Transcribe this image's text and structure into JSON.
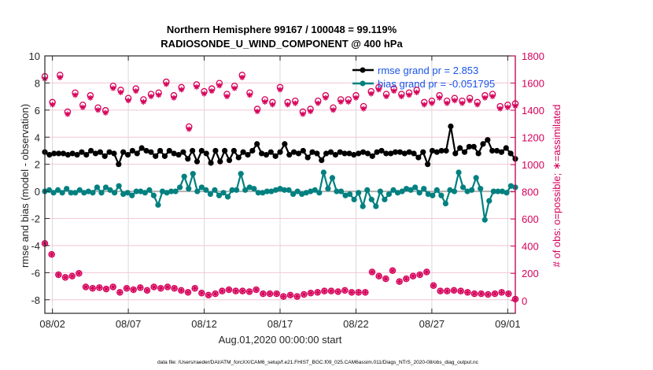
{
  "chart_data": {
    "type": "line",
    "title": [
      "Northern Hemisphere 99167 / 100048 = 99.119%",
      "RADIOSONDE_U_WIND_COMPONENT @ 400 hPa"
    ],
    "xlabel": "Aug.01,2020 00:00:00 start",
    "ylabel": "rmse and bias (model - observation)",
    "y2label": "# of obs: o=possible; ∗=assimilated",
    "xlim_days": [
      0.5,
      31.5
    ],
    "ylim": [
      -9,
      10
    ],
    "y2lim": [
      -94,
      1800
    ],
    "x_ticks": [
      {
        "day": 1,
        "label": "08/02"
      },
      {
        "day": 6,
        "label": "08/07"
      },
      {
        "day": 11,
        "label": "08/12"
      },
      {
        "day": 16,
        "label": "08/17"
      },
      {
        "day": 21,
        "label": "08/22"
      },
      {
        "day": 26,
        "label": "08/27"
      },
      {
        "day": 31,
        "label": "09/01"
      }
    ],
    "y_ticks": [
      10,
      8,
      6,
      4,
      2,
      0,
      -2,
      -4,
      -6,
      -8
    ],
    "y2_ticks": [
      1800,
      1600,
      1400,
      1200,
      1000,
      800,
      600,
      400,
      200,
      0
    ],
    "grid": true,
    "legend": {
      "placement": "top-right",
      "entries": [
        {
          "label": "rmse grand pr = 2.853",
          "color": "#000000"
        },
        {
          "label": "bias grand pr = -0.051795",
          "color": "#008080"
        }
      ]
    },
    "x_step_days": 0.5,
    "x_start_day": 0.5,
    "series": [
      {
        "name": "rmse",
        "axis": "left",
        "color": "#000000",
        "values": [
          2.9,
          2.7,
          2.8,
          2.8,
          2.8,
          2.7,
          2.8,
          2.7,
          2.9,
          2.7,
          3.0,
          2.8,
          2.9,
          2.6,
          2.9,
          2.8,
          2.0,
          2.9,
          2.7,
          3.0,
          2.8,
          3.2,
          3.0,
          2.9,
          2.6,
          3.0,
          2.6,
          3.0,
          2.8,
          2.7,
          2.9,
          2.4,
          3.0,
          2.2,
          3.0,
          2.8,
          2.1,
          3.0,
          2.2,
          3.0,
          2.3,
          3.0,
          2.5,
          2.9,
          2.7,
          3.0,
          3.5,
          2.8,
          2.7,
          2.9,
          2.6,
          2.9,
          3.5,
          2.7,
          2.9,
          2.8,
          3.0,
          2.5,
          2.9,
          2.8,
          2.3,
          2.8,
          2.9,
          2.7,
          2.9,
          2.8,
          2.8,
          2.7,
          2.8,
          2.9,
          2.8,
          2.6,
          2.9,
          3.0,
          2.8,
          2.8,
          2.9,
          2.9,
          2.8,
          2.9,
          2.8,
          2.5,
          2.9,
          2.0,
          3.0,
          2.9,
          3.0,
          3.0,
          4.8,
          2.8,
          3.2,
          2.9,
          3.3,
          3.3,
          2.8,
          3.5,
          3.8,
          3.0,
          3.0,
          2.9,
          3.2,
          2.8,
          2.4
        ]
      },
      {
        "name": "bias",
        "axis": "left",
        "color": "#008080",
        "values": [
          0.0,
          0.1,
          -0.1,
          0.1,
          -0.1,
          0.2,
          -0.1,
          -0.1,
          0.1,
          -0.1,
          0.0,
          -0.1,
          0.3,
          -0.1,
          0.3,
          0.1,
          -0.1,
          0.4,
          -0.2,
          -0.1,
          -0.3,
          0.0,
          0.0,
          -0.1,
          0.1,
          -0.3,
          -1.0,
          0.0,
          -0.1,
          0.0,
          0.0,
          0.3,
          1.1,
          0.2,
          1.3,
          0.0,
          0.3,
          0.1,
          -0.2,
          0.1,
          -0.3,
          -0.1,
          -0.4,
          0.1,
          0.1,
          1.3,
          0.1,
          0.3,
          0.2,
          -0.1,
          -0.1,
          0.0,
          0.0,
          0.1,
          0.2,
          0.1,
          0.1,
          -0.2,
          0.0,
          -0.2,
          -0.1,
          0.0,
          0.1,
          -0.1,
          1.4,
          0.2,
          1.0,
          0.0,
          0.0,
          -0.3,
          -0.2,
          -0.6,
          -0.1,
          -1.1,
          0.1,
          -0.6,
          -1.1,
          0.0,
          -0.6,
          -0.2,
          0.1,
          -0.1,
          0.0,
          0.2,
          0.1,
          0.3,
          -0.1,
          0.2,
          -0.2,
          -0.3,
          0.1,
          -0.3,
          -0.9,
          0.1,
          0.0,
          1.4,
          0.3,
          0.0,
          0.1,
          1.0,
          0.2,
          -2.1,
          -0.7,
          0.0,
          0.0,
          0.0,
          -0.1,
          0.4,
          0.3
        ]
      },
      {
        "name": "obs_possible",
        "axis": "right",
        "color": "#d6005a",
        "marker": "o",
        "values": [
          1640,
          1450,
          1650,
          1380,
          1520,
          1430,
          1500,
          1410,
          1390,
          1570,
          1540,
          1480,
          1550,
          1470,
          1510,
          1520,
          1600,
          1500,
          1560,
          1270,
          1580,
          1530,
          1550,
          1590,
          1510,
          1570,
          1650,
          1520,
          1400,
          1470,
          1450,
          1560,
          1450,
          1460,
          1380,
          1400,
          1460,
          1500,
          1410,
          1470,
          1470,
          1500,
          1420,
          1530,
          1560,
          1510,
          1550,
          1510,
          1520,
          1540,
          1450,
          1460,
          1500,
          1460,
          1480,
          1460,
          1480,
          1450,
          1500,
          1510,
          1420,
          1430,
          1440
        ]
      },
      {
        "name": "obs_assimilated",
        "axis": "right",
        "color": "#d6005a",
        "marker": "*",
        "values": [
          420,
          340,
          190,
          170,
          180,
          200,
          100,
          90,
          95,
          85,
          100,
          60,
          90,
          80,
          95,
          75,
          100,
          90,
          100,
          90,
          75,
          60,
          90,
          55,
          40,
          50,
          70,
          80,
          70,
          70,
          65,
          80,
          50,
          50,
          50,
          30,
          40,
          30,
          45,
          55,
          60,
          70,
          70,
          65,
          75,
          60,
          60,
          60,
          210,
          180,
          160,
          220,
          140,
          160,
          180,
          190,
          210,
          110,
          70,
          70,
          75,
          70,
          60,
          50,
          50,
          45,
          50,
          60,
          50,
          10
        ]
      }
    ]
  },
  "footer": {
    "data_file": "data file: /Users/raeder/DAI/ATM_forcXX/CAM6_setup/f.e21.FHIST_BGC.f09_025.CAM6assim.011/Diags_NTrS_2020-08/obs_diag_output.nc"
  }
}
